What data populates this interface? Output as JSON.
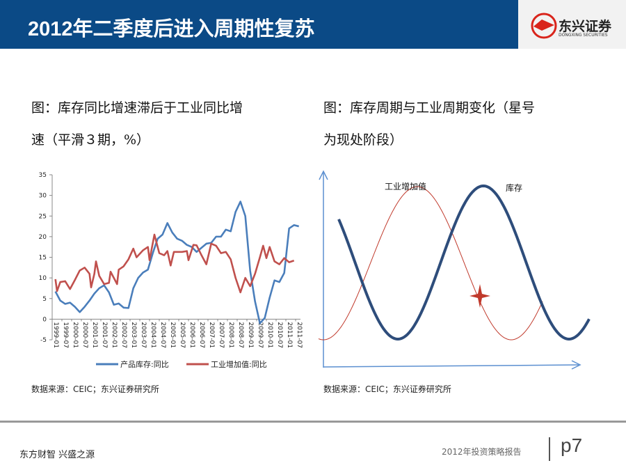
{
  "header": {
    "title": "2012年二季度后进入周期性复苏",
    "logo_text": "东兴证券",
    "logo_sub": "DONGXING SECURITIES"
  },
  "left": {
    "caption_line1": "图：库存同比增速滞后于工业同比增",
    "caption_line2": "速（平滑３期，%）",
    "source": "数据来源：CEIC；东兴证券研究所"
  },
  "right": {
    "caption_line1": "图：库存周期与工业周期变化（星号",
    "caption_line2": "为现处阶段）",
    "source": "数据来源：CEIC；东兴证券研究所",
    "label_industry": "工业增加值",
    "label_inventory": "库存",
    "colors": {
      "industry": "#c0392b",
      "inventory": "#2e4d7b"
    }
  },
  "footer": {
    "slogan": "东方财智  兴盛之源",
    "report": "2012年投资策略报告",
    "page": "p7"
  },
  "chart_data": [
    {
      "type": "line",
      "title": "",
      "ylim": [
        -5,
        35
      ],
      "yticks": [
        "35",
        "30",
        "25",
        "20",
        "15",
        "10",
        "5",
        "0",
        "-5"
      ],
      "xticks": [
        "1999-01",
        "1999-07",
        "2000-01",
        "2000-07",
        "2001-01",
        "2001-07",
        "2002-01",
        "2002-07",
        "2003-01",
        "2003-07",
        "2004-01",
        "2004-07",
        "2005-01",
        "2005-07",
        "2006-01",
        "2006-07",
        "2007-01",
        "2007-07",
        "2008-01",
        "2008-07",
        "2009-01",
        "2009-07",
        "2010-01",
        "2010-07",
        "2011-01",
        "2011-07"
      ],
      "legend_position": "bottom",
      "grid": false,
      "series": [
        {
          "name": "产品库存:同比",
          "color": "#4a7ebb",
          "points": [
            [
              "1999-03",
              6.7
            ],
            [
              "1999-06",
              4.5
            ],
            [
              "1999-09",
              3.7
            ],
            [
              "1999-12",
              4.0
            ],
            [
              "2000-03",
              3.0
            ],
            [
              "2000-06",
              1.7
            ],
            [
              "2000-09",
              3.0
            ],
            [
              "2000-12",
              4.5
            ],
            [
              "2001-03",
              6.2
            ],
            [
              "2001-06",
              7.5
            ],
            [
              "2001-09",
              8.2
            ],
            [
              "2001-12",
              6.5
            ],
            [
              "2002-03",
              3.5
            ],
            [
              "2002-06",
              3.8
            ],
            [
              "2002-09",
              2.8
            ],
            [
              "2002-12",
              2.7
            ],
            [
              "2003-03",
              7.5
            ],
            [
              "2003-06",
              10.0
            ],
            [
              "2003-09",
              11.3
            ],
            [
              "2003-12",
              12.0
            ],
            [
              "2004-03",
              16.0
            ],
            [
              "2004-06",
              19.5
            ],
            [
              "2004-09",
              20.5
            ],
            [
              "2004-12",
              23.3
            ],
            [
              "2005-03",
              21.0
            ],
            [
              "2005-06",
              19.5
            ],
            [
              "2005-09",
              19.0
            ],
            [
              "2005-12",
              18.0
            ],
            [
              "2006-03",
              17.5
            ],
            [
              "2006-06",
              16.3
            ],
            [
              "2006-09",
              17.3
            ],
            [
              "2006-12",
              18.3
            ],
            [
              "2007-03",
              18.5
            ],
            [
              "2007-06",
              20.0
            ],
            [
              "2007-09",
              20.0
            ],
            [
              "2007-12",
              21.7
            ],
            [
              "2008-03",
              21.3
            ],
            [
              "2008-06",
              26.0
            ],
            [
              "2008-09",
              28.5
            ],
            [
              "2008-12",
              25.0
            ],
            [
              "2009-03",
              11.7
            ],
            [
              "2009-06",
              4.3
            ],
            [
              "2009-09",
              -1.0
            ],
            [
              "2009-12",
              0.3
            ],
            [
              "2010-03",
              5.2
            ],
            [
              "2010-06",
              9.4
            ],
            [
              "2010-09",
              9.0
            ],
            [
              "2010-12",
              11.2
            ],
            [
              "2011-03",
              22.0
            ],
            [
              "2011-06",
              22.8
            ],
            [
              "2011-09",
              22.5
            ]
          ]
        },
        {
          "name": "工业增加值:同比",
          "color": "#c0504d",
          "points": [
            [
              "1999-03",
              9.7
            ],
            [
              "1999-04",
              6.8
            ],
            [
              "1999-06",
              9.0
            ],
            [
              "1999-09",
              9.2
            ],
            [
              "1999-12",
              7.3
            ],
            [
              "2000-03",
              9.5
            ],
            [
              "2000-06",
              11.8
            ],
            [
              "2000-09",
              12.5
            ],
            [
              "2000-12",
              11.0
            ],
            [
              "2001-01",
              7.7
            ],
            [
              "2001-03",
              11.0
            ],
            [
              "2001-04",
              14.0
            ],
            [
              "2001-06",
              10.5
            ],
            [
              "2001-09",
              8.5
            ],
            [
              "2001-12",
              8.8
            ],
            [
              "2002-01",
              11.5
            ],
            [
              "2002-03",
              10.0
            ],
            [
              "2002-05",
              8.5
            ],
            [
              "2002-06",
              12.0
            ],
            [
              "2002-09",
              12.8
            ],
            [
              "2002-12",
              14.5
            ],
            [
              "2003-03",
              17.1
            ],
            [
              "2003-05",
              15.0
            ],
            [
              "2003-09",
              16.7
            ],
            [
              "2003-12",
              17.5
            ],
            [
              "2004-01",
              14.3
            ],
            [
              "2004-04",
              20.5
            ],
            [
              "2004-07",
              16.0
            ],
            [
              "2004-10",
              15.5
            ],
            [
              "2004-12",
              16.5
            ],
            [
              "2005-02",
              13.0
            ],
            [
              "2005-04",
              16.3
            ],
            [
              "2005-09",
              16.3
            ],
            [
              "2005-12",
              16.5
            ],
            [
              "2006-01",
              14.3
            ],
            [
              "2006-04",
              18.0
            ],
            [
              "2006-06",
              17.9
            ],
            [
              "2006-09",
              15.5
            ],
            [
              "2006-12",
              13.3
            ],
            [
              "2007-03",
              18.3
            ],
            [
              "2007-06",
              17.8
            ],
            [
              "2007-09",
              16.0
            ],
            [
              "2007-12",
              16.3
            ],
            [
              "2008-03",
              14.5
            ],
            [
              "2008-06",
              10.0
            ],
            [
              "2008-09",
              6.5
            ],
            [
              "2008-12",
              10.0
            ],
            [
              "2009-03",
              8.0
            ],
            [
              "2009-06",
              11.0
            ],
            [
              "2009-09",
              15.0
            ],
            [
              "2009-11",
              17.8
            ],
            [
              "2010-01",
              14.8
            ],
            [
              "2010-03",
              17.5
            ],
            [
              "2010-06",
              14.0
            ],
            [
              "2010-09",
              13.3
            ],
            [
              "2010-12",
              14.8
            ],
            [
              "2011-03",
              13.8
            ],
            [
              "2011-06",
              14.2
            ]
          ]
        }
      ]
    },
    {
      "type": "line",
      "title": "",
      "series": [
        {
          "name": "工业增加值"
        },
        {
          "name": "库存"
        }
      ]
    }
  ]
}
